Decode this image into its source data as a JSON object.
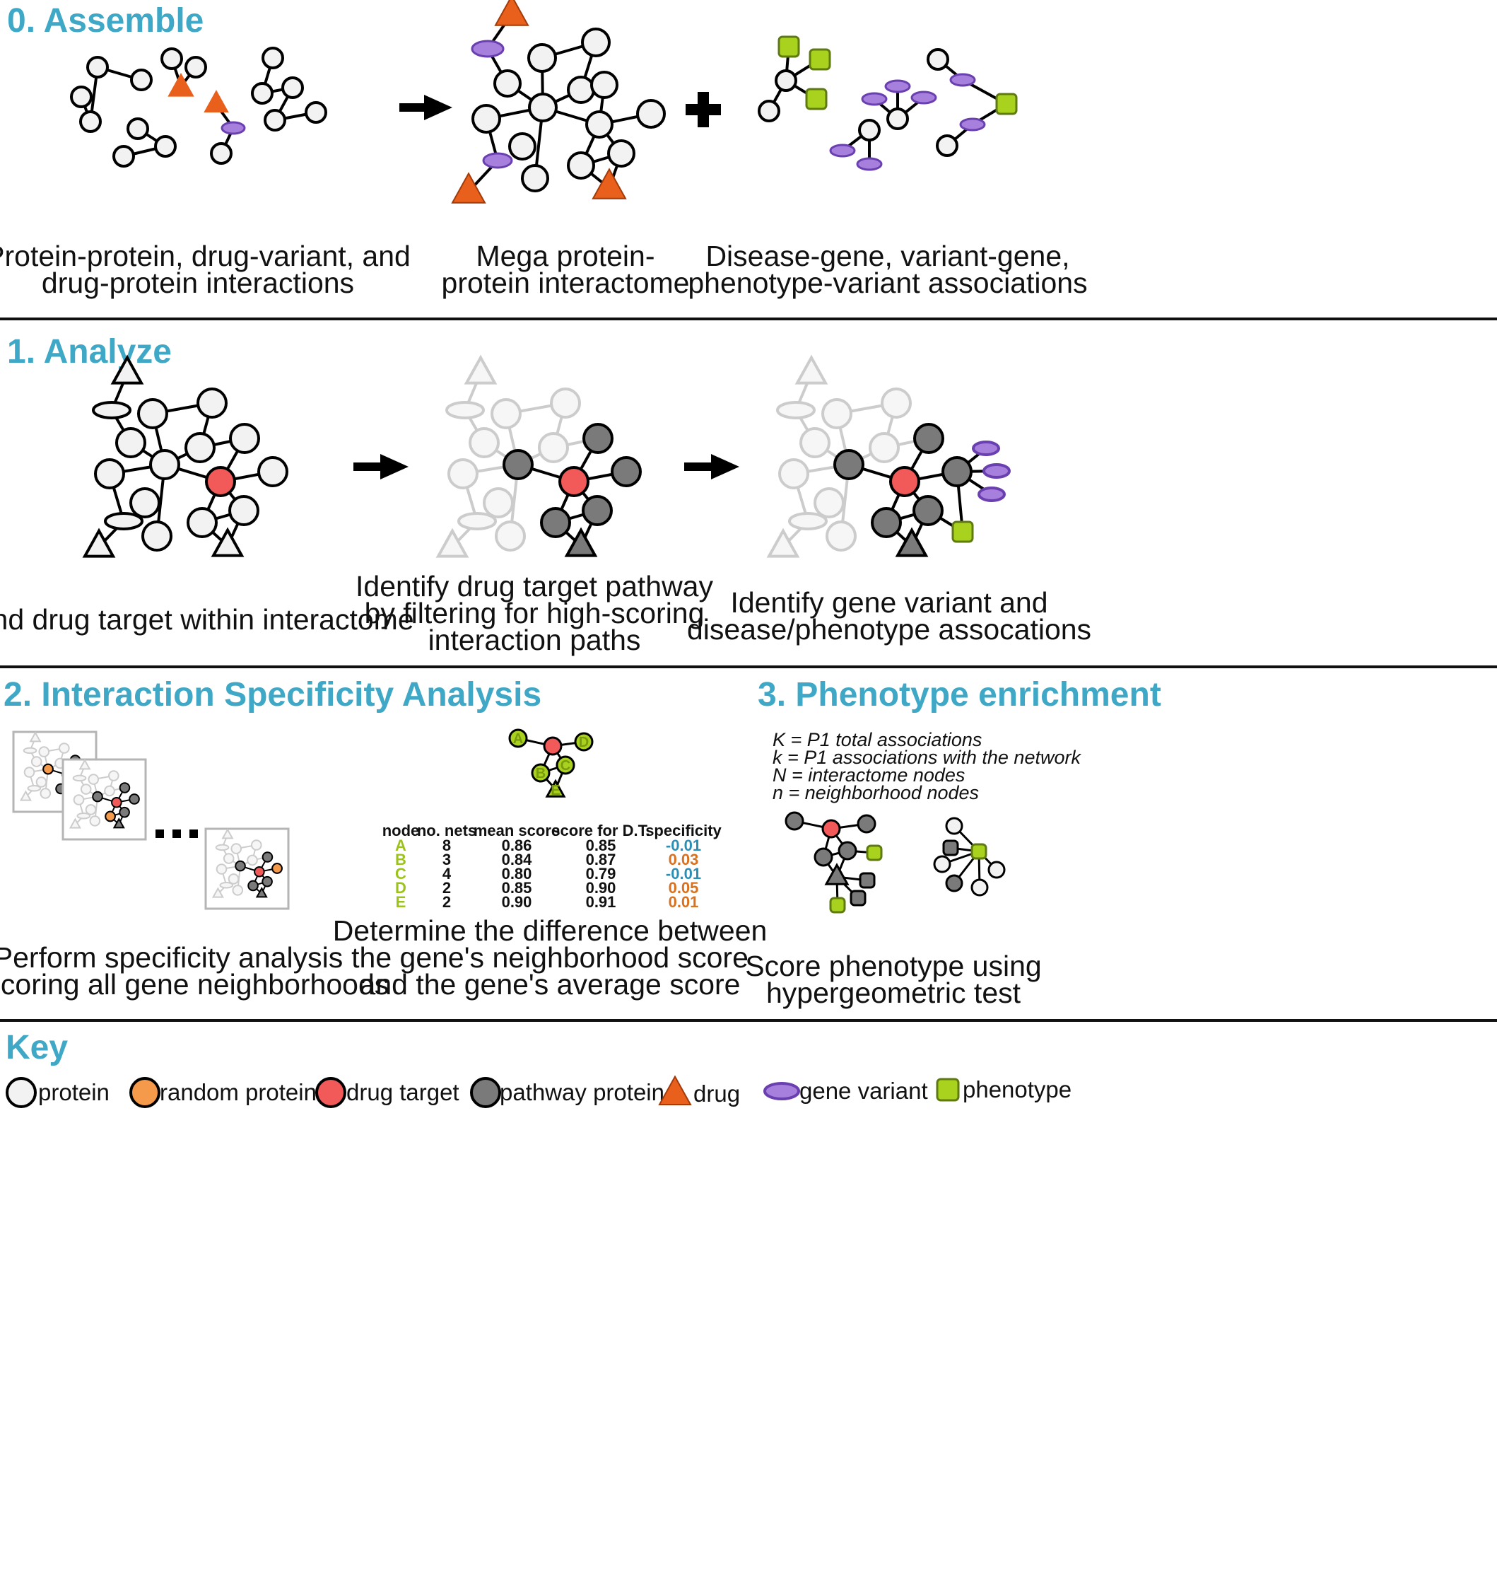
{
  "colors": {
    "title": "#3fa8c6",
    "protein": "#f2f2f2",
    "random_protein": "#f59a4a",
    "drug_target": "#f25a5a",
    "pathway_protein": "#7a7a7a",
    "drug": "#e8601c",
    "gene_variant": "#a77fdc",
    "phenotype": "#a8d21e",
    "negative": "#2a8fb5",
    "positive": "#d9711e",
    "faded": "#cccccc"
  },
  "sections": {
    "assemble": {
      "title": "0. Assemble",
      "captions": [
        [
          "Protein-protein, drug-variant, and",
          "drug-protein interactions"
        ],
        [
          "Mega protein-",
          "protein interactome"
        ],
        [
          "Disease-gene, variant-gene,",
          "phenotype-variant associations"
        ]
      ]
    },
    "analyze": {
      "title": "1. Analyze",
      "captions": [
        [
          "Find drug target within interactome"
        ],
        [
          "Identify drug target pathway",
          "by filtering for high-scoring",
          "interaction paths"
        ],
        [
          "Identify gene variant and",
          "disease/phenotype assocations"
        ]
      ]
    },
    "specificity": {
      "title": "2. Interaction Specificity Analysis",
      "captions": [
        [
          "Perform specificity analysis",
          "by scoring all gene neighborhoods"
        ],
        [
          "Determine the difference between",
          "the gene's neighborhood score",
          "and the gene's average score"
        ]
      ],
      "mini_nodes": [
        "A",
        "B",
        "C",
        "D",
        "E"
      ],
      "table": {
        "headers": [
          "node",
          "no. nets",
          "mean score",
          "score for D.T.",
          "specificity"
        ],
        "rows": [
          {
            "node": "A",
            "nets": "8",
            "mean": "0.86",
            "dt": "0.85",
            "spec": "-0.01",
            "sign": "neg"
          },
          {
            "node": "B",
            "nets": "3",
            "mean": "0.84",
            "dt": "0.87",
            "spec": "0.03",
            "sign": "pos"
          },
          {
            "node": "C",
            "nets": "4",
            "mean": "0.80",
            "dt": "0.79",
            "spec": "-0.01",
            "sign": "neg"
          },
          {
            "node": "D",
            "nets": "2",
            "mean": "0.85",
            "dt": "0.90",
            "spec": "0.05",
            "sign": "pos"
          },
          {
            "node": "E",
            "nets": "2",
            "mean": "0.90",
            "dt": "0.91",
            "spec": "0.01",
            "sign": "pos"
          }
        ]
      }
    },
    "enrichment": {
      "title": "3. Phenotype enrichment",
      "formulas": [
        "K = P1 total associations",
        "k = P1 associations with the network",
        "N = interactome nodes",
        "n = neighborhood nodes"
      ],
      "caption": [
        "Score phenotype using",
        "hypergeometric test"
      ]
    }
  },
  "key": {
    "title": "Key",
    "items": [
      {
        "label": "protein",
        "shape": "circle",
        "color": "#f2f2f2"
      },
      {
        "label": "random protein",
        "shape": "circle",
        "color": "#f59a4a"
      },
      {
        "label": "drug target",
        "shape": "circle",
        "color": "#f25a5a"
      },
      {
        "label": "pathway protein",
        "shape": "circle",
        "color": "#7a7a7a"
      },
      {
        "label": "drug",
        "shape": "triangle",
        "color": "#e8601c"
      },
      {
        "label": "gene variant",
        "shape": "ellipse",
        "color": "#a77fdc"
      },
      {
        "label": "phenotype",
        "shape": "square",
        "color": "#a8d21e"
      }
    ]
  }
}
